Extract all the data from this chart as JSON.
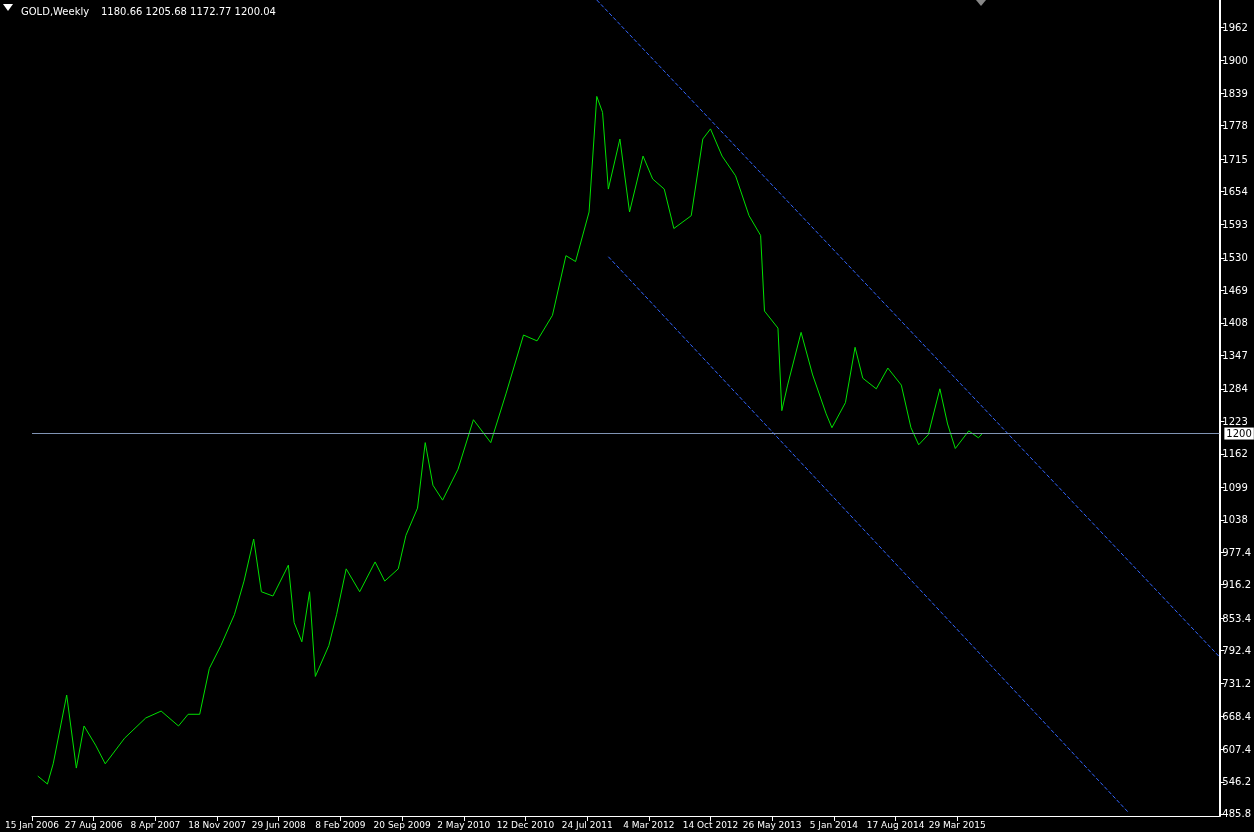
{
  "chart_data": {
    "type": "line",
    "title": "GOLD,Weekly",
    "subtitle": "1180.66 1205.68 1172.77 1200.04",
    "x": [
      "2006-02-05",
      "2006-03-12",
      "2006-04-02",
      "2006-05-21",
      "2006-06-25",
      "2006-07-23",
      "2006-09-03",
      "2006-10-08",
      "2006-12-17",
      "2007-03-04",
      "2007-04-29",
      "2007-07-01",
      "2007-08-05",
      "2007-09-16",
      "2007-10-21",
      "2007-12-02",
      "2008-01-20",
      "2008-02-24",
      "2008-03-30",
      "2008-04-27",
      "2008-06-08",
      "2008-08-03",
      "2008-08-24",
      "2008-09-21",
      "2008-10-19",
      "2008-11-09",
      "2008-12-28",
      "2009-01-25",
      "2009-03-01",
      "2009-04-19",
      "2009-06-14",
      "2009-07-19",
      "2009-09-06",
      "2009-10-04",
      "2009-11-15",
      "2009-12-13",
      "2010-01-10",
      "2010-02-14",
      "2010-04-11",
      "2010-06-06",
      "2010-08-08",
      "2010-10-03",
      "2010-12-05",
      "2011-01-23",
      "2011-03-20",
      "2011-05-08",
      "2011-06-12",
      "2011-07-31",
      "2011-08-28",
      "2011-09-18",
      "2011-10-09",
      "2011-11-20",
      "2011-12-25",
      "2012-02-12",
      "2012-03-18",
      "2012-04-29",
      "2012-06-03",
      "2012-08-05",
      "2012-09-16",
      "2012-10-14",
      "2012-11-25",
      "2013-01-13",
      "2013-03-03",
      "2013-04-14",
      "2013-04-28",
      "2013-06-16",
      "2013-06-30",
      "2013-07-21",
      "2013-09-08",
      "2013-10-20",
      "2013-12-08",
      "2013-12-29",
      "2014-02-16",
      "2014-03-23",
      "2014-04-20",
      "2014-06-08",
      "2014-07-20",
      "2014-09-07",
      "2014-10-12",
      "2014-11-09",
      "2014-12-14",
      "2015-01-25",
      "2015-02-22",
      "2015-03-22",
      "2015-05-10",
      "2015-06-14",
      "2015-06-28"
    ],
    "series": [
      {
        "color": "#00e000",
        "values": [
          557,
          542,
          580,
          709,
          572,
          651,
          615,
          580,
          628,
          666,
          679,
          651,
          673,
          673,
          759,
          802,
          860,
          923,
          1002,
          903,
          895,
          953,
          845,
          809,
          903,
          744,
          802,
          860,
          946,
          903,
          959,
          923,
          946,
          1009,
          1060,
          1183,
          1103,
          1075,
          1133,
          1226,
          1183,
          1276,
          1385,
          1374,
          1422,
          1534,
          1523,
          1616,
          1833,
          1803,
          1659,
          1753,
          1616,
          1721,
          1678,
          1659,
          1585,
          1609,
          1753,
          1772,
          1721,
          1684,
          1609,
          1572,
          1430,
          1398,
          1243,
          1291,
          1390,
          1310,
          1237,
          1211,
          1258,
          1362,
          1304,
          1284,
          1323,
          1291,
          1211,
          1179,
          1198,
          1284,
          1218,
          1172,
          1205,
          1192,
          1200
        ]
      },
      {
        "type": "line",
        "x": [
          "2011-08-28",
          "2017-11-05"
        ],
        "values": [
          2014,
          781
        ],
        "color": "#3366ff",
        "line_style": "dashed"
      },
      {
        "type": "line",
        "x": [
          "2011-10-09",
          "2016-12-11"
        ],
        "values": [
          1532,
          488
        ],
        "color": "#3366ff",
        "line_style": "dashed"
      }
    ],
    "marker": "none",
    "xlim": [
      "2006-01-15",
      "2017-11-05"
    ],
    "xticks": [
      {
        "value": "2006-01-15",
        "label": "15 Jan 2006"
      },
      {
        "value": "2006-08-27",
        "label": "27 Aug 2006"
      },
      {
        "value": "2007-04-08",
        "label": "8 Apr 2007"
      },
      {
        "value": "2007-11-18",
        "label": "18 Nov 2007"
      },
      {
        "value": "2008-06-29",
        "label": "29 Jun 2008"
      },
      {
        "value": "2009-02-08",
        "label": "8 Feb 2009"
      },
      {
        "value": "2009-09-20",
        "label": "20 Sep 2009"
      },
      {
        "value": "2010-05-02",
        "label": "2 May 2010"
      },
      {
        "value": "2010-12-12",
        "label": "12 Dec 2010"
      },
      {
        "value": "2011-07-24",
        "label": "24 Jul 2011"
      },
      {
        "value": "2012-03-04",
        "label": "4 Mar 2012"
      },
      {
        "value": "2012-10-14",
        "label": "14 Oct 2012"
      },
      {
        "value": "2013-05-26",
        "label": "26 May 2013"
      },
      {
        "value": "2014-01-05",
        "label": "5 Jan 2014"
      },
      {
        "value": "2014-08-17",
        "label": "17 Aug 2014"
      },
      {
        "value": "2015-03-29",
        "label": "29 Mar 2015"
      }
    ],
    "ylim": [
      482,
      2014
    ],
    "yticks": [
      485.8,
      546.2,
      607.4,
      668.4,
      731.2,
      792.4,
      853.4,
      916.2,
      977.4,
      1038,
      1099,
      1162,
      1223,
      1284,
      1347,
      1408,
      1469,
      1530,
      1593,
      1654,
      1715,
      1778,
      1839,
      1900,
      1962
    ],
    "ref_lines": [
      {
        "axis": "y",
        "value": 1200.04,
        "label": "1200",
        "color": "#8094b4"
      }
    ]
  }
}
